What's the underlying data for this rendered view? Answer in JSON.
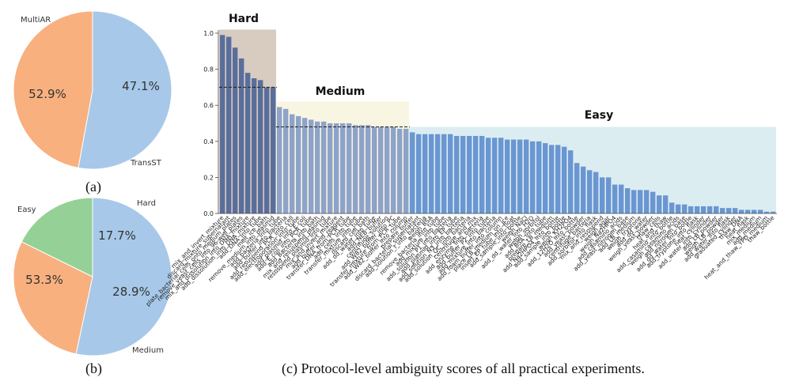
{
  "captions": {
    "a": "(a)",
    "b": "(b)",
    "c": "(c) Protocol-level ambiguity scores of all practical experiments."
  },
  "chart_data": [
    {
      "type": "pie",
      "labels": [
        "MultiAR",
        "TransST"
      ],
      "values": [
        52.9,
        47.1
      ],
      "value_labels": [
        "52.9%",
        "47.1%"
      ],
      "colors": [
        "#a7c8e9",
        "#f8b07f"
      ]
    },
    {
      "type": "pie",
      "labels": [
        "Easy",
        "Medium",
        "Hard"
      ],
      "values": [
        53.3,
        28.9,
        17.7
      ],
      "value_labels": [
        "53.3%",
        "28.9%",
        "17.7%"
      ],
      "colors": [
        "#a7c8e9",
        "#f8b07f",
        "#95d196"
      ]
    },
    {
      "type": "bar",
      "ylim": [
        0,
        1.0
      ],
      "yticks": [
        "0.0",
        "0.2",
        "0.4",
        "0.6",
        "0.8",
        "1.0"
      ],
      "regions": [
        {
          "label": "Hard",
          "start": 0,
          "end": 9,
          "level": 1.02,
          "threshold": 0.7,
          "fill": "#d8cbc0"
        },
        {
          "label": "Medium",
          "start": 9,
          "end": 30,
          "level": 0.62,
          "threshold": 0.48,
          "fill": "#f8f5e2"
        },
        {
          "label": "Easy",
          "start": 30,
          "end": 88,
          "level": 0.48,
          "fill": "#dcedf2"
        }
      ],
      "bar_colors": {
        "Hard": "#5a6e9c",
        "Medium": "#8ea3c9",
        "Easy": "#6a96d2"
      },
      "categories": [
        "mix_and_invert_mixture",
        "discard_mixture_supernatant",
        "plate_bacterial_cells_onto_medium_plates",
        "remove_yeast_cells_into_96-well_plates",
        "mix_and_dissolution_into_DNA_mixture",
        "add_dissolution_into_DNA_mixture",
        "add_DNA_into_tube",
        "melt_ice_bath",
        "remove_medium_into_plasmid",
        "add_bacteria_into_tube",
        "add_buffer_into_bacteria",
        "add_resuspend_PCR_into_cell",
        "add_electroporation_into_tube",
        "add_plasmid_into_E.coli",
        "add_E.coli_into_PCR_tube",
        "add_Bacteria_into_bath",
        "mix_and_resuspend_plasmid",
        "resuspend_plasmid_into_tube",
        "mix_and_invert_mixture",
        "add_buffer_and_reagent",
        "transfer_DNA_from_PCR_tube",
        "add_cells_into_tube",
        "transfer_mixture_into_tube",
        "discard_cell_bath",
        "add_dd_water_into_tube",
        "add_NEB_buffer",
        "centrifuge_solution",
        "add_W82_buffer_into_PC",
        "transfer_mixture_from_PCR_tube",
        "add_W82_buffer_into_column",
        "prepare_buffer",
        "discard_bacterial_supernatant",
        "add_solution_I_into_bacteria",
        "weigh_BSA",
        "remove_bacteria_into_tube",
        "add_mixture_into_tube",
        "add_solution_P1_into_bacteria",
        "add_plasmid_into_EP_tube",
        "add_solution_N3_into_bacteria",
        "add_solution_QC_into_bacteria",
        "centrifuge_and_mix",
        "add_enzyme_into_bacteria",
        "add_buffer_P2_into_tube",
        "add_mixture_into_bacteria",
        "add_foam_buffer_into_column",
        "place_LB_medium_on_ice",
        "insert_EP_tube_into_float",
        "add_sample_into_bottle",
        "weigh_NaCl",
        "add_dd_water_into_H2O",
        "weigh_sorbitol",
        "add_BSA_into_tube",
        "prepare_LB_medium",
        "add_Na2HPO4_into_bottle",
        "add_sample_into_bottle",
        "weigh_KH2PO4",
        "add_12H2O_into_bottle",
        "add_yeast_powder",
        "centrifuge_bacteria",
        "add_sorbitol_into_flask",
        "mix_and_resuspend",
        "weigh_agar",
        "weigh_Na2HPO4",
        "add_casamino_acids",
        "add_yeast_nitrogen_base",
        "add_LB_medium",
        "weigh_tryptone",
        "add_dd_water",
        "weigh_yeast_powder",
        "thaw_cells",
        "heat_and_thaw",
        "add_casamino_into_bottle",
        "weigh_casamino_acids",
        "add_nitrogen_base",
        "add_dd_water_into_bottle",
        "add_tryptone_into_flask",
        "heat_cylinder",
        "add_water_into_cylinder",
        "add_LB_powder",
        "weigh_LB_powder",
        "add_water_into_flask",
        "graduated_cylinder",
        "thaw_DNA",
        "heat_flask",
        "mix_medium",
        "add_medium",
        "heat_and_thaw_YPD_medium",
        "thaw_bottle"
      ],
      "values": [
        0.99,
        0.98,
        0.92,
        0.86,
        0.78,
        0.75,
        0.74,
        0.7,
        0.7,
        0.59,
        0.58,
        0.55,
        0.54,
        0.53,
        0.52,
        0.51,
        0.51,
        0.5,
        0.5,
        0.5,
        0.5,
        0.49,
        0.49,
        0.49,
        0.48,
        0.48,
        0.48,
        0.48,
        0.47,
        0.47,
        0.45,
        0.44,
        0.44,
        0.44,
        0.44,
        0.44,
        0.44,
        0.43,
        0.43,
        0.43,
        0.43,
        0.43,
        0.42,
        0.42,
        0.42,
        0.41,
        0.41,
        0.41,
        0.41,
        0.4,
        0.4,
        0.39,
        0.38,
        0.38,
        0.37,
        0.35,
        0.28,
        0.26,
        0.24,
        0.23,
        0.2,
        0.2,
        0.16,
        0.16,
        0.14,
        0.13,
        0.13,
        0.13,
        0.12,
        0.1,
        0.1,
        0.06,
        0.05,
        0.05,
        0.04,
        0.04,
        0.04,
        0.04,
        0.04,
        0.03,
        0.03,
        0.03,
        0.02,
        0.02,
        0.02,
        0.02,
        0.01,
        0.01
      ]
    }
  ]
}
